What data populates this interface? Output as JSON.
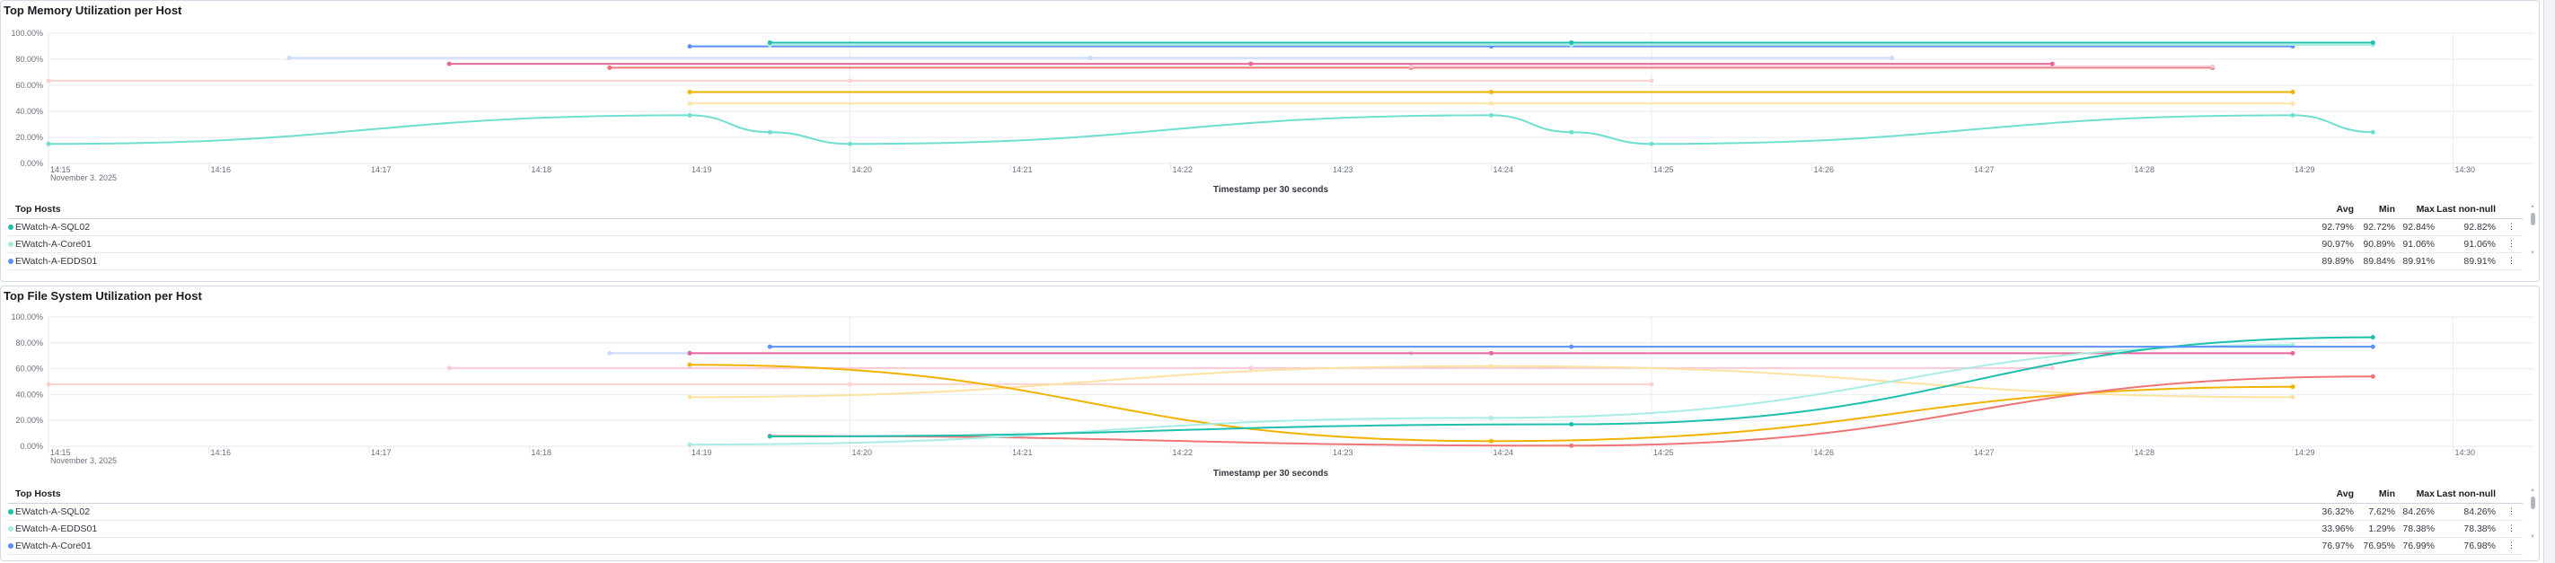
{
  "panels": [
    {
      "title": "Top Memory Utilization per Host",
      "legend": {
        "header": "Top Hosts",
        "columns": [
          "Avg",
          "Min",
          "Max",
          "Last non-null"
        ],
        "rows": [
          {
            "host": "EWatch-A-SQL02",
            "color": "#1fbfae",
            "avg": "92.79%",
            "min": "92.72%",
            "max": "92.84%",
            "last": "92.82%"
          },
          {
            "host": "EWatch-A-Core01",
            "color": "#a8ece4",
            "avg": "90.97%",
            "min": "90.89%",
            "max": "91.06%",
            "last": "91.06%"
          },
          {
            "host": "EWatch-A-EDDS01",
            "color": "#5b8ff9",
            "avg": "89.89%",
            "min": "89.84%",
            "max": "89.91%",
            "last": "89.91%"
          }
        ]
      }
    },
    {
      "title": "Top File System Utilization per Host",
      "legend": {
        "header": "Top Hosts",
        "columns": [
          "Avg",
          "Min",
          "Max",
          "Last non-null"
        ],
        "rows": [
          {
            "host": "EWatch-A-SQL02",
            "color": "#1fbfae",
            "avg": "36.32%",
            "min": "7.62%",
            "max": "84.26%",
            "last": "84.26%"
          },
          {
            "host": "EWatch-A-EDDS01",
            "color": "#a8ece4",
            "avg": "33.96%",
            "min": "1.29%",
            "max": "78.38%",
            "last": "78.38%"
          },
          {
            "host": "EWatch-A-Core01",
            "color": "#5b8ff9",
            "avg": "76.97%",
            "min": "76.95%",
            "max": "76.99%",
            "last": "76.98%"
          }
        ]
      }
    }
  ],
  "kebab_icon": "⋮",
  "chart_data": [
    {
      "type": "line",
      "title": "Top Memory Utilization per Host",
      "xlabel": "Timestamp per 30 seconds",
      "x_date_label": "November 3, 2025",
      "x_ticks": [
        "14:15",
        "14:16",
        "14:17",
        "14:18",
        "14:19",
        "14:20",
        "14:21",
        "14:22",
        "14:23",
        "14:24",
        "14:25",
        "14:26",
        "14:27",
        "14:28",
        "14:29",
        "14:30"
      ],
      "y_ticks": [
        "0.00%",
        "20.00%",
        "40.00%",
        "60.00%",
        "80.00%",
        "100.00%"
      ],
      "ylim": [
        0,
        100
      ],
      "grid": true,
      "series": [
        {
          "color": "#fcd2cf",
          "points": [
            [
              "14:15",
              63.5
            ],
            [
              "14:20",
              63.5
            ],
            [
              "14:25",
              63.5
            ]
          ]
        },
        {
          "color": "#6fdfd0",
          "smooth": true,
          "points": [
            [
              "14:15",
              15
            ],
            [
              "14:19",
              37
            ],
            [
              "14:19:30",
              24
            ],
            [
              "14:20",
              15
            ],
            [
              "14:24",
              37
            ],
            [
              "14:24:30",
              24
            ],
            [
              "14:25",
              15
            ],
            [
              "14:29",
              37
            ],
            [
              "14:29:30",
              24
            ]
          ]
        },
        {
          "color": "#c9dcfb",
          "points": [
            [
              "14:16:30",
              81
            ],
            [
              "14:21:30",
              81
            ],
            [
              "14:26:30",
              81
            ]
          ]
        },
        {
          "color": "#fde4a8",
          "points": [
            [
              "14:19",
              46
            ],
            [
              "14:24",
              46
            ],
            [
              "14:29",
              46
            ]
          ]
        },
        {
          "color": "#f2b300",
          "points": [
            [
              "14:19",
              54.8
            ],
            [
              "14:24",
              54.8
            ],
            [
              "14:29",
              54.8
            ]
          ]
        },
        {
          "color": "#f07474",
          "points": [
            [
              "14:18:30",
              73.5
            ],
            [
              "14:23:30",
              73.5
            ],
            [
              "14:28:30",
              73.5
            ]
          ]
        },
        {
          "color": "#fbc6d4",
          "points": [
            [
              "14:23:30",
              74.5
            ],
            [
              "14:28:30",
              74.5
            ]
          ]
        },
        {
          "color": "#e8689c",
          "points": [
            [
              "14:17:30",
              76.5
            ],
            [
              "14:22:30",
              76.5
            ],
            [
              "14:27:30",
              76.5
            ]
          ]
        },
        {
          "name": "EWatch-A-EDDS01",
          "color": "#5b8ff9",
          "points": [
            [
              "14:19",
              89.9
            ],
            [
              "14:24",
              89.9
            ],
            [
              "14:29",
              89.9
            ]
          ]
        },
        {
          "name": "EWatch-A-Core01",
          "color": "#a8ece4",
          "points": [
            [
              "14:19:30",
              91
            ],
            [
              "14:24:30",
              91
            ],
            [
              "14:29:30",
              91
            ]
          ]
        },
        {
          "name": "EWatch-A-SQL02",
          "color": "#1fbfae",
          "points": [
            [
              "14:19:30",
              92.8
            ],
            [
              "14:24:30",
              92.8
            ],
            [
              "14:29:30",
              92.8
            ]
          ]
        }
      ]
    },
    {
      "type": "line",
      "title": "Top File System Utilization per Host",
      "xlabel": "Timestamp per 30 seconds",
      "x_date_label": "November 3, 2025",
      "x_ticks": [
        "14:15",
        "14:16",
        "14:17",
        "14:18",
        "14:19",
        "14:20",
        "14:21",
        "14:22",
        "14:23",
        "14:24",
        "14:25",
        "14:26",
        "14:27",
        "14:28",
        "14:29",
        "14:30"
      ],
      "y_ticks": [
        "0.00%",
        "20.00%",
        "40.00%",
        "60.00%",
        "80.00%",
        "100.00%"
      ],
      "ylim": [
        0,
        100
      ],
      "grid": true,
      "series": [
        {
          "color": "#fcd2cf",
          "points": [
            [
              "14:15",
              48
            ],
            [
              "14:20",
              48
            ],
            [
              "14:25",
              48
            ]
          ]
        },
        {
          "color": "#fbcad6",
          "points": [
            [
              "14:17:30",
              60.5
            ],
            [
              "14:22:30",
              60.5
            ],
            [
              "14:27:30",
              60.5
            ]
          ]
        },
        {
          "color": "#c9dcfb",
          "points": [
            [
              "14:18:30",
              72
            ],
            [
              "14:23:30",
              72
            ]
          ]
        },
        {
          "color": "#e8689c",
          "points": [
            [
              "14:19",
              72
            ],
            [
              "14:24",
              72
            ],
            [
              "14:29",
              72
            ]
          ]
        },
        {
          "color": "#fde2a0",
          "smooth": true,
          "points": [
            [
              "14:19",
              38
            ],
            [
              "14:24",
              62
            ],
            [
              "14:29",
              38
            ]
          ]
        },
        {
          "color": "#f2b300",
          "smooth": true,
          "points": [
            [
              "14:19",
              63
            ],
            [
              "14:24",
              4
            ],
            [
              "14:29",
              46
            ]
          ]
        },
        {
          "color": "#f07474",
          "smooth": true,
          "points": [
            [
              "14:19:30",
              8
            ],
            [
              "14:24:30",
              0.5
            ],
            [
              "14:29:30",
              54
            ]
          ]
        },
        {
          "name": "EWatch-A-EDDS01",
          "color": "#a8ece4",
          "smooth": true,
          "points": [
            [
              "14:19",
              1.3
            ],
            [
              "14:24",
              22
            ],
            [
              "14:29",
              78.4
            ]
          ]
        },
        {
          "name": "EWatch-A-SQL02",
          "color": "#1fbfae",
          "smooth": true,
          "points": [
            [
              "14:19:30",
              7.6
            ],
            [
              "14:24:30",
              17
            ],
            [
              "14:29:30",
              84.3
            ]
          ]
        },
        {
          "name": "EWatch-A-Core01",
          "color": "#5b8ff9",
          "points": [
            [
              "14:19:30",
              77
            ],
            [
              "14:24:30",
              77
            ],
            [
              "14:29:30",
              77
            ]
          ]
        }
      ]
    }
  ]
}
